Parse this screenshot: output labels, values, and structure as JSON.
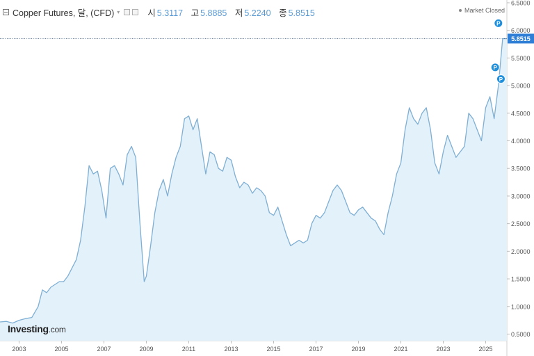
{
  "header": {
    "title": "Copper Futures, 달, (CFD)",
    "caret": "▾",
    "ohlc": [
      {
        "label": "시",
        "value": "5.3117"
      },
      {
        "label": "고",
        "value": "5.8885"
      },
      {
        "label": "저",
        "value": "5.2240"
      },
      {
        "label": "종",
        "value": "5.8515"
      }
    ]
  },
  "status": {
    "text": "Market Closed"
  },
  "logo": {
    "brand": "Investing",
    "suffix": ".com"
  },
  "colors": {
    "line": "#7fafd3",
    "fill": "#e3f1fb",
    "accent": "#1f8fdc",
    "price_tag": "#2f7fd6",
    "crosshair": "#3b5b87"
  },
  "chart_data": {
    "type": "area",
    "title": "Copper Futures, 달, (CFD)",
    "xlabel": "",
    "ylabel": "",
    "xlim": [
      2002.1,
      2026.0
    ],
    "ylim": [
      0.38,
      6.55
    ],
    "x_ticks": [
      "2003",
      "2005",
      "2007",
      "2009",
      "2011",
      "2013",
      "2015",
      "2017",
      "2019",
      "2021",
      "2023",
      "2025"
    ],
    "y_ticks": [
      "0.5000",
      "1.0000",
      "1.5000",
      "2.0000",
      "2.5000",
      "3.0000",
      "3.5000",
      "4.0000",
      "4.5000",
      "5.0000",
      "5.5000",
      "6.0000",
      "6.5000"
    ],
    "last_price_label": "5.8515",
    "last_price": 5.8515,
    "markers": [
      {
        "label": "P",
        "x": 2025.6,
        "y": 6.13
      },
      {
        "label": "P",
        "x": 2025.45,
        "y": 5.33
      },
      {
        "label": "P",
        "x": 2025.72,
        "y": 5.12
      }
    ],
    "series": [
      {
        "x": [
          2002.1,
          2002.4,
          2002.7,
          2003.0,
          2003.3,
          2003.6,
          2003.9,
          2004.1,
          2004.3,
          2004.5,
          2004.7,
          2004.9,
          2005.1,
          2005.3,
          2005.5,
          2005.7,
          2005.9,
          2006.1,
          2006.3,
          2006.5,
          2006.7,
          2006.9,
          2007.1,
          2007.3,
          2007.5,
          2007.7,
          2007.9,
          2008.1,
          2008.3,
          2008.5,
          2008.7,
          2008.9,
          2009.0,
          2009.2,
          2009.4,
          2009.6,
          2009.8,
          2010.0,
          2010.2,
          2010.4,
          2010.6,
          2010.8,
          2011.0,
          2011.2,
          2011.4,
          2011.6,
          2011.8,
          2012.0,
          2012.2,
          2012.4,
          2012.6,
          2012.8,
          2013.0,
          2013.2,
          2013.4,
          2013.6,
          2013.8,
          2014.0,
          2014.2,
          2014.4,
          2014.6,
          2014.8,
          2015.0,
          2015.2,
          2015.4,
          2015.6,
          2015.8,
          2016.0,
          2016.2,
          2016.4,
          2016.6,
          2016.8,
          2017.0,
          2017.2,
          2017.4,
          2017.6,
          2017.8,
          2018.0,
          2018.2,
          2018.4,
          2018.6,
          2018.8,
          2019.0,
          2019.2,
          2019.4,
          2019.6,
          2019.8,
          2020.0,
          2020.2,
          2020.4,
          2020.6,
          2020.8,
          2021.0,
          2021.2,
          2021.4,
          2021.6,
          2021.8,
          2022.0,
          2022.2,
          2022.4,
          2022.6,
          2022.8,
          2023.0,
          2023.2,
          2023.4,
          2023.6,
          2023.8,
          2024.0,
          2024.2,
          2024.4,
          2024.6,
          2024.8,
          2025.0,
          2025.2,
          2025.4,
          2025.6,
          2025.8,
          2026.0
        ],
        "y": [
          0.72,
          0.73,
          0.7,
          0.75,
          0.78,
          0.8,
          1.0,
          1.3,
          1.25,
          1.35,
          1.4,
          1.45,
          1.45,
          1.55,
          1.7,
          1.85,
          2.2,
          2.8,
          3.55,
          3.4,
          3.45,
          3.1,
          2.6,
          3.5,
          3.55,
          3.4,
          3.2,
          3.75,
          3.9,
          3.7,
          2.5,
          1.45,
          1.55,
          2.1,
          2.7,
          3.1,
          3.3,
          3.0,
          3.4,
          3.7,
          3.9,
          4.4,
          4.45,
          4.2,
          4.4,
          3.9,
          3.4,
          3.8,
          3.75,
          3.5,
          3.45,
          3.7,
          3.65,
          3.35,
          3.15,
          3.25,
          3.2,
          3.05,
          3.15,
          3.1,
          3.0,
          2.7,
          2.65,
          2.8,
          2.55,
          2.3,
          2.1,
          2.15,
          2.2,
          2.15,
          2.2,
          2.5,
          2.65,
          2.6,
          2.7,
          2.9,
          3.1,
          3.2,
          3.1,
          2.9,
          2.7,
          2.65,
          2.75,
          2.8,
          2.7,
          2.6,
          2.55,
          2.4,
          2.3,
          2.7,
          3.0,
          3.4,
          3.6,
          4.2,
          4.6,
          4.4,
          4.3,
          4.5,
          4.6,
          4.2,
          3.6,
          3.4,
          3.8,
          4.1,
          3.9,
          3.7,
          3.8,
          3.9,
          4.5,
          4.4,
          4.2,
          4.0,
          4.6,
          4.8,
          4.4,
          5.0,
          5.85,
          5.85
        ]
      }
    ]
  }
}
